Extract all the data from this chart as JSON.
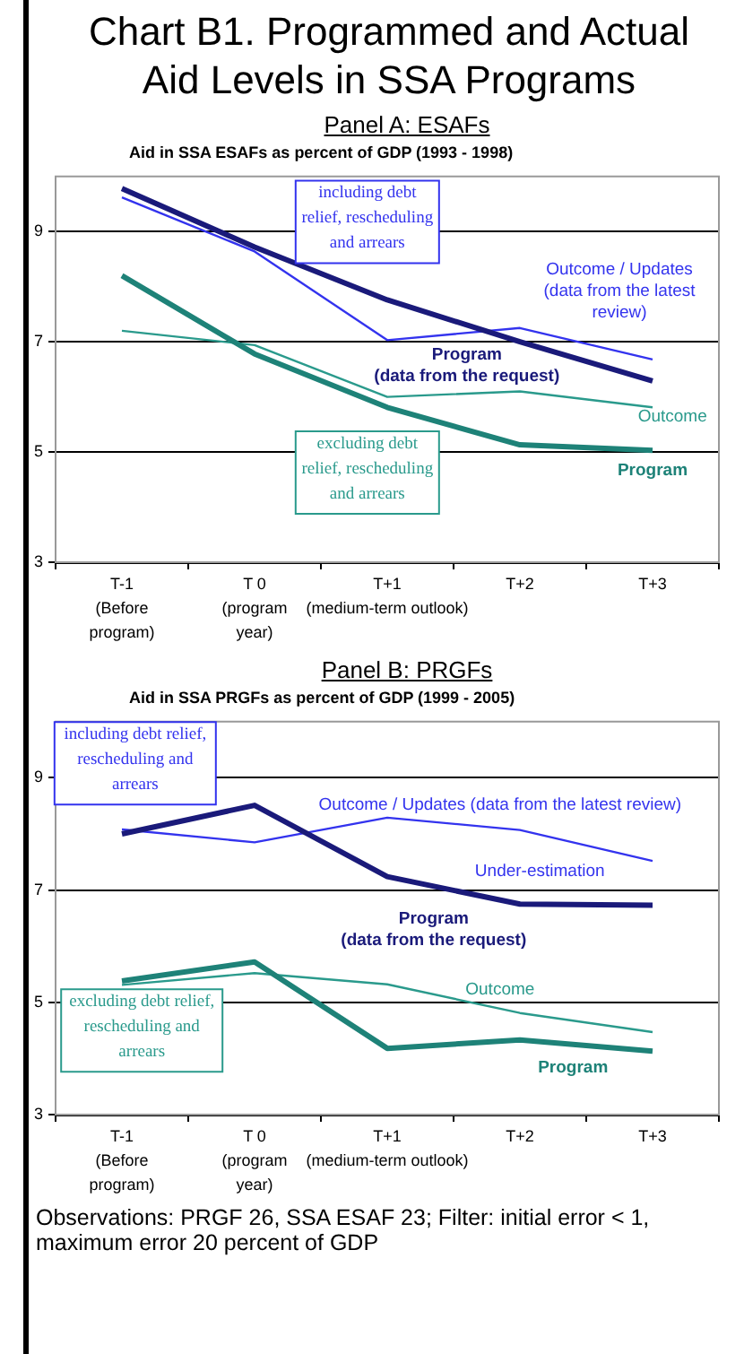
{
  "chart_data": [
    {
      "type": "line",
      "title": "Chart B1. Programmed and Actual Aid Levels in SSA Programs",
      "subtitle": "Panel A: ESAFs",
      "ylabel": "Aid in SSA ESAFs as percent of GDP (1993 - 1998)",
      "categories": [
        "T-1\n(Before\nprogram)",
        "T 0\n(program\nyear)",
        "T+1\n(medium-term outlook)",
        "T+2",
        "T+3"
      ],
      "series": [
        {
          "name": "Program (data from the request)",
          "color": "#1a1a7a",
          "values": [
            9.78,
            8.72,
            7.76,
            7.0,
            6.29
          ]
        },
        {
          "name": "Outcome / Updates (data from the latest review)",
          "color": "#3333ee",
          "values": [
            9.62,
            8.64,
            7.03,
            7.25,
            6.68
          ]
        },
        {
          "name": "Program",
          "color": "#1e8278",
          "values": [
            8.2,
            6.78,
            5.81,
            5.13,
            5.03
          ]
        },
        {
          "name": "Outcome",
          "color": "#2a9a8c",
          "values": [
            7.2,
            6.94,
            6.0,
            6.1,
            5.81
          ]
        }
      ],
      "annotations": [
        "including debt relief, rescheduling and arrears",
        "excluding debt relief, rescheduling and arrears"
      ],
      "ylim": [
        3,
        10
      ],
      "yticks": [
        3,
        5,
        7,
        9
      ],
      "grid": "y",
      "legend": false,
      "marker": "none",
      "line_style": "solid"
    },
    {
      "type": "line",
      "subtitle": "Panel B: PRGFs",
      "ylabel": "Aid in SSA PRGFs as percent of GDP (1999 - 2005)",
      "categories": [
        "T-1\n(Before\nprogram)",
        "T 0\n(program\nyear)",
        "T+1\n(medium-term outlook)",
        "T+2",
        "T+3"
      ],
      "series": [
        {
          "name": "Program (data from the request)",
          "color": "#1a1a7a",
          "values": [
            8.0,
            8.51,
            7.24,
            6.75,
            6.73
          ]
        },
        {
          "name": "Outcome / Updates (data from the latest review)",
          "color": "#3333ee",
          "values": [
            8.08,
            7.85,
            8.29,
            8.07,
            7.52
          ]
        },
        {
          "name": "Program",
          "color": "#1e8278",
          "values": [
            5.38,
            5.72,
            4.18,
            4.33,
            4.13
          ]
        },
        {
          "name": "Outcome",
          "color": "#2a9a8c",
          "values": [
            5.31,
            5.52,
            5.32,
            4.81,
            4.47
          ]
        }
      ],
      "annotations": [
        "including debt relief, rescheduling and arrears",
        "Under-estimation",
        "excluding debt relief, rescheduling and arrears",
        "Observations: PRGF 26, SSA ESAF 23; Filter: initial error < 1, maximum error 20 percent of GDP"
      ],
      "ylim": [
        3,
        10
      ],
      "yticks": [
        3,
        5,
        7,
        9
      ],
      "grid": "y",
      "legend": false,
      "marker": "none",
      "line_style": "solid"
    }
  ]
}
